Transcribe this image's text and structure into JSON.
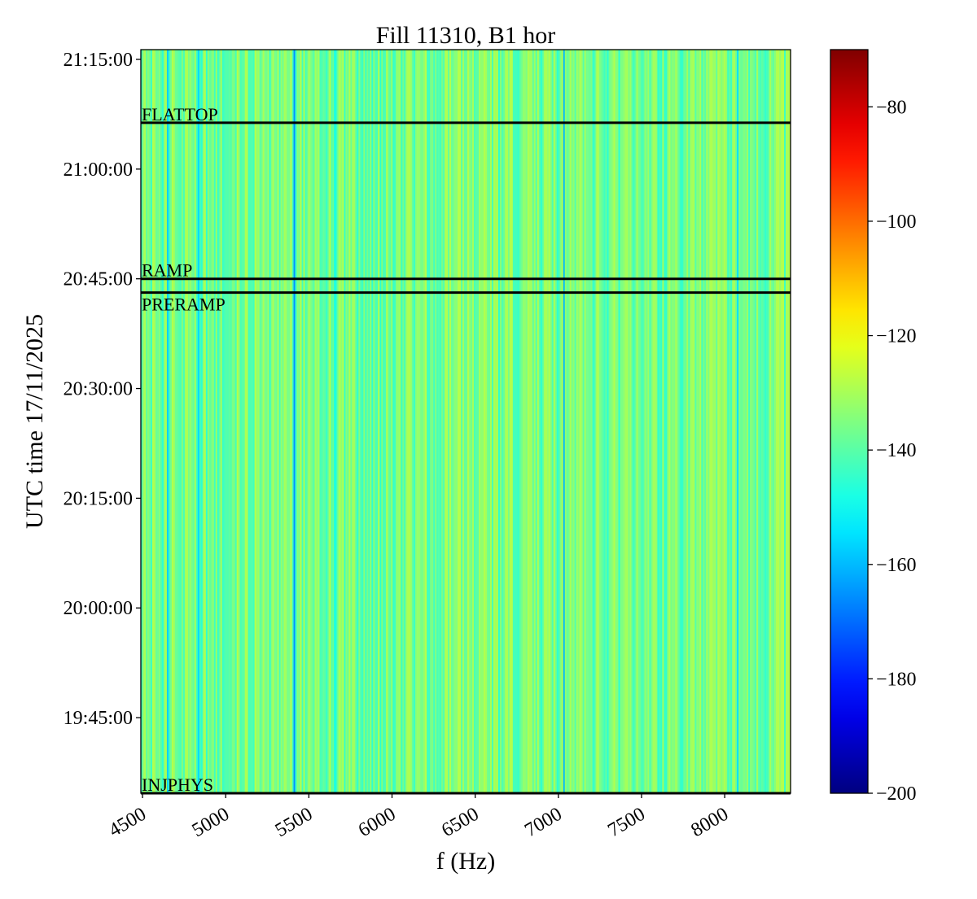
{
  "chart_data": {
    "type": "heatmap",
    "title": "Fill 11310, B1 hor",
    "xlabel": "f (Hz)",
    "ylabel": "UTC time 17/11/2025",
    "xlim": [
      4490,
      8396
    ],
    "ylim": [
      "19:34:40",
      "21:16:20"
    ],
    "xticks": [
      4500,
      5000,
      5500,
      6000,
      6500,
      7000,
      7500,
      8000
    ],
    "xtick_labels": [
      "4500",
      "5000",
      "5500",
      "6000",
      "6500",
      "7000",
      "7500",
      "8000"
    ],
    "yticks": [
      "19:45:00",
      "20:00:00",
      "20:15:00",
      "20:30:00",
      "20:45:00",
      "21:00:00",
      "21:15:00"
    ],
    "colorbar": {
      "colormap": "jet",
      "range": [
        -200,
        -70
      ],
      "ticks": [
        -80,
        -100,
        -120,
        -140,
        -160,
        -180,
        -200
      ],
      "tick_labels": [
        "−80",
        "−100",
        "−120",
        "−140",
        "−160",
        "−180",
        "−200"
      ]
    },
    "typical_value_range": [
      -146,
      -128
    ],
    "notable_lines": [
      {
        "f": 4642,
        "value": -157
      },
      {
        "f": 4828,
        "value": -156
      },
      {
        "f": 5412,
        "value": -165
      },
      {
        "f": 5650,
        "value": -150
      },
      {
        "f": 7025,
        "value": -160
      },
      {
        "f": 8078,
        "value": -155
      }
    ],
    "events": [
      {
        "label": "FLATTOP",
        "time": "21:06:20"
      },
      {
        "label": "RAMP",
        "time": "20:45:00"
      },
      {
        "label": "PRERAMP",
        "time": "20:43:07"
      },
      {
        "label": "INJPHYS",
        "time": "19:34:40"
      }
    ]
  }
}
